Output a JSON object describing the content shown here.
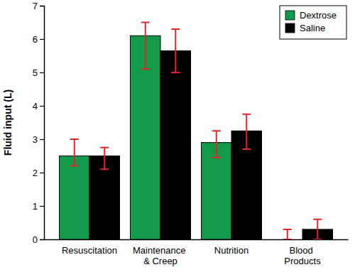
{
  "chart_data": {
    "type": "bar",
    "categories": [
      "Resuscitation",
      "Maintenance & Creep",
      "Nutrition",
      "Blood Products"
    ],
    "y_label": "Fluid input (L)",
    "series": [
      {
        "name": "Dextrose",
        "color": "#139a4a",
        "values": [
          2.5,
          6.1,
          2.9,
          0.0
        ],
        "lower": [
          2.2,
          5.1,
          2.45,
          0.0
        ],
        "upper": [
          3.0,
          6.5,
          3.25,
          0.3
        ]
      },
      {
        "name": "Saline",
        "color": "#000000",
        "values": [
          2.5,
          5.65,
          3.25,
          0.3
        ],
        "lower": [
          2.1,
          5.0,
          2.7,
          0.0
        ],
        "upper": [
          2.75,
          6.3,
          3.75,
          0.6
        ]
      }
    ],
    "ylim": [
      0,
      7
    ],
    "yticks": [
      0,
      1,
      2,
      3,
      4,
      5,
      6,
      7
    ],
    "legend": "upper right"
  }
}
